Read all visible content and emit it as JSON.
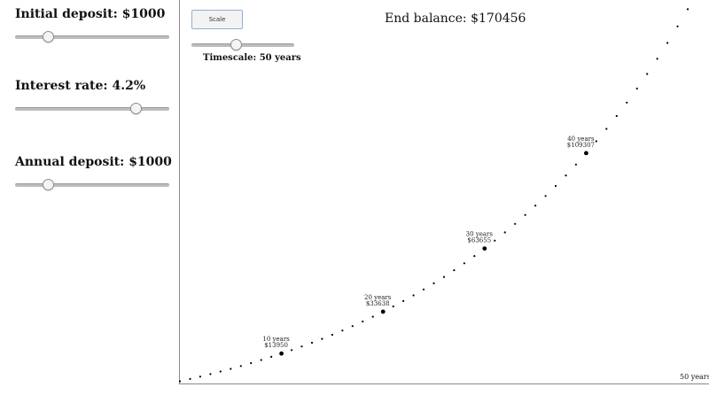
{
  "controls": {
    "initial_deposit": {
      "label": "Initial deposit: $1000",
      "value": 1000,
      "fraction": 0.21
    },
    "interest_rate": {
      "label": "Interest rate: 4.2%",
      "value": 4.2,
      "fraction": 0.78
    },
    "annual_deposit": {
      "label": "Annual deposit: $1000",
      "value": 1000,
      "fraction": 0.21
    }
  },
  "scale_button": {
    "label": "Scale"
  },
  "timescale": {
    "label": "Timescale: 50 years",
    "value": 50,
    "fraction": 0.43
  },
  "end_balance": {
    "label": "End balance: $170456"
  },
  "axis_end_label": "50 years",
  "chart_data": {
    "type": "scatter",
    "x_min": 0,
    "x_max": 50,
    "y_min": 0,
    "y_max": 170456,
    "milestones": [
      {
        "year": 10,
        "year_label": "10 years",
        "value_label": "$13950"
      },
      {
        "year": 20,
        "year_label": "20 years",
        "value_label": "$33638"
      },
      {
        "year": 30,
        "year_label": "30 years",
        "value_label": "$63655"
      },
      {
        "year": 40,
        "year_label": "40 years",
        "value_label": "$109307"
      }
    ]
  }
}
